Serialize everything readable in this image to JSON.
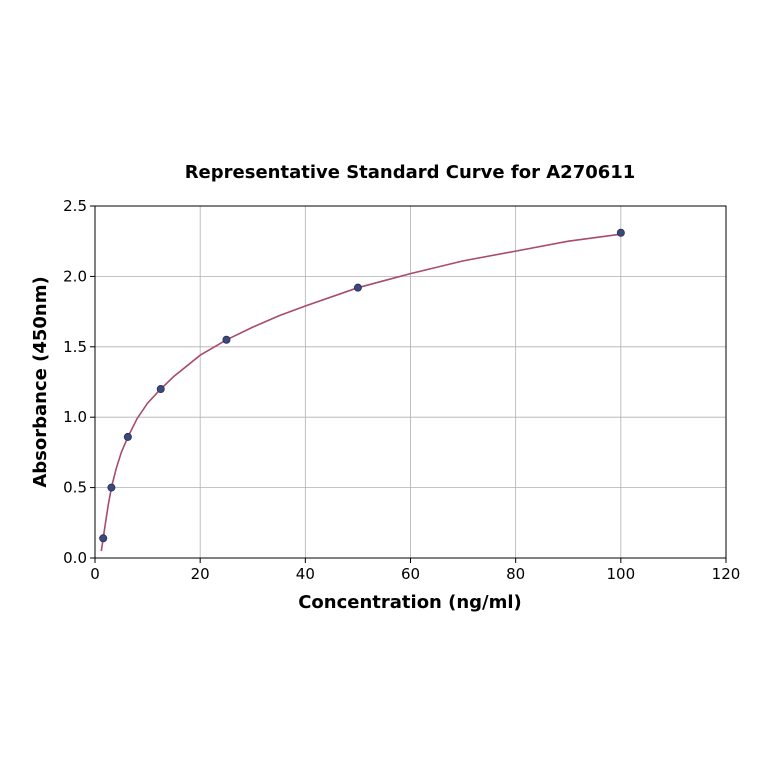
{
  "chart_data": {
    "type": "scatter",
    "title": "Representative Standard Curve for A270611",
    "xlabel": "Concentration (ng/ml)",
    "ylabel": "Absorbance (450nm)",
    "xlim": [
      0,
      120
    ],
    "ylim": [
      0,
      2.5
    ],
    "xticks": [
      0,
      20,
      40,
      60,
      80,
      100,
      120
    ],
    "yticks": [
      0.0,
      0.5,
      1.0,
      1.5,
      2.0,
      2.5
    ],
    "xtick_labels": [
      "0",
      "20",
      "40",
      "60",
      "80",
      "100",
      "120"
    ],
    "ytick_labels": [
      "0.0",
      "0.5",
      "1.0",
      "1.5",
      "2.0",
      "2.5"
    ],
    "grid": true,
    "points": {
      "x": [
        1.56,
        3.12,
        6.25,
        12.5,
        25,
        50,
        100
      ],
      "y": [
        0.14,
        0.5,
        0.86,
        1.2,
        1.55,
        1.92,
        2.31
      ]
    },
    "curve": {
      "x": [
        1.2,
        1.56,
        2,
        2.5,
        3.12,
        4,
        5,
        6.25,
        8,
        10,
        12.5,
        15,
        20,
        25,
        30,
        35,
        40,
        50,
        60,
        70,
        80,
        90,
        100
      ],
      "y": [
        0.05,
        0.14,
        0.25,
        0.37,
        0.5,
        0.63,
        0.75,
        0.86,
        0.99,
        1.1,
        1.2,
        1.29,
        1.44,
        1.55,
        1.64,
        1.72,
        1.79,
        1.92,
        2.02,
        2.11,
        2.18,
        2.25,
        2.3
      ]
    },
    "colors": {
      "curve": "#a84b6c",
      "point_fill": "#3a4a7a",
      "point_stroke": "#2a2a55",
      "grid": "#b0b0b0"
    }
  }
}
